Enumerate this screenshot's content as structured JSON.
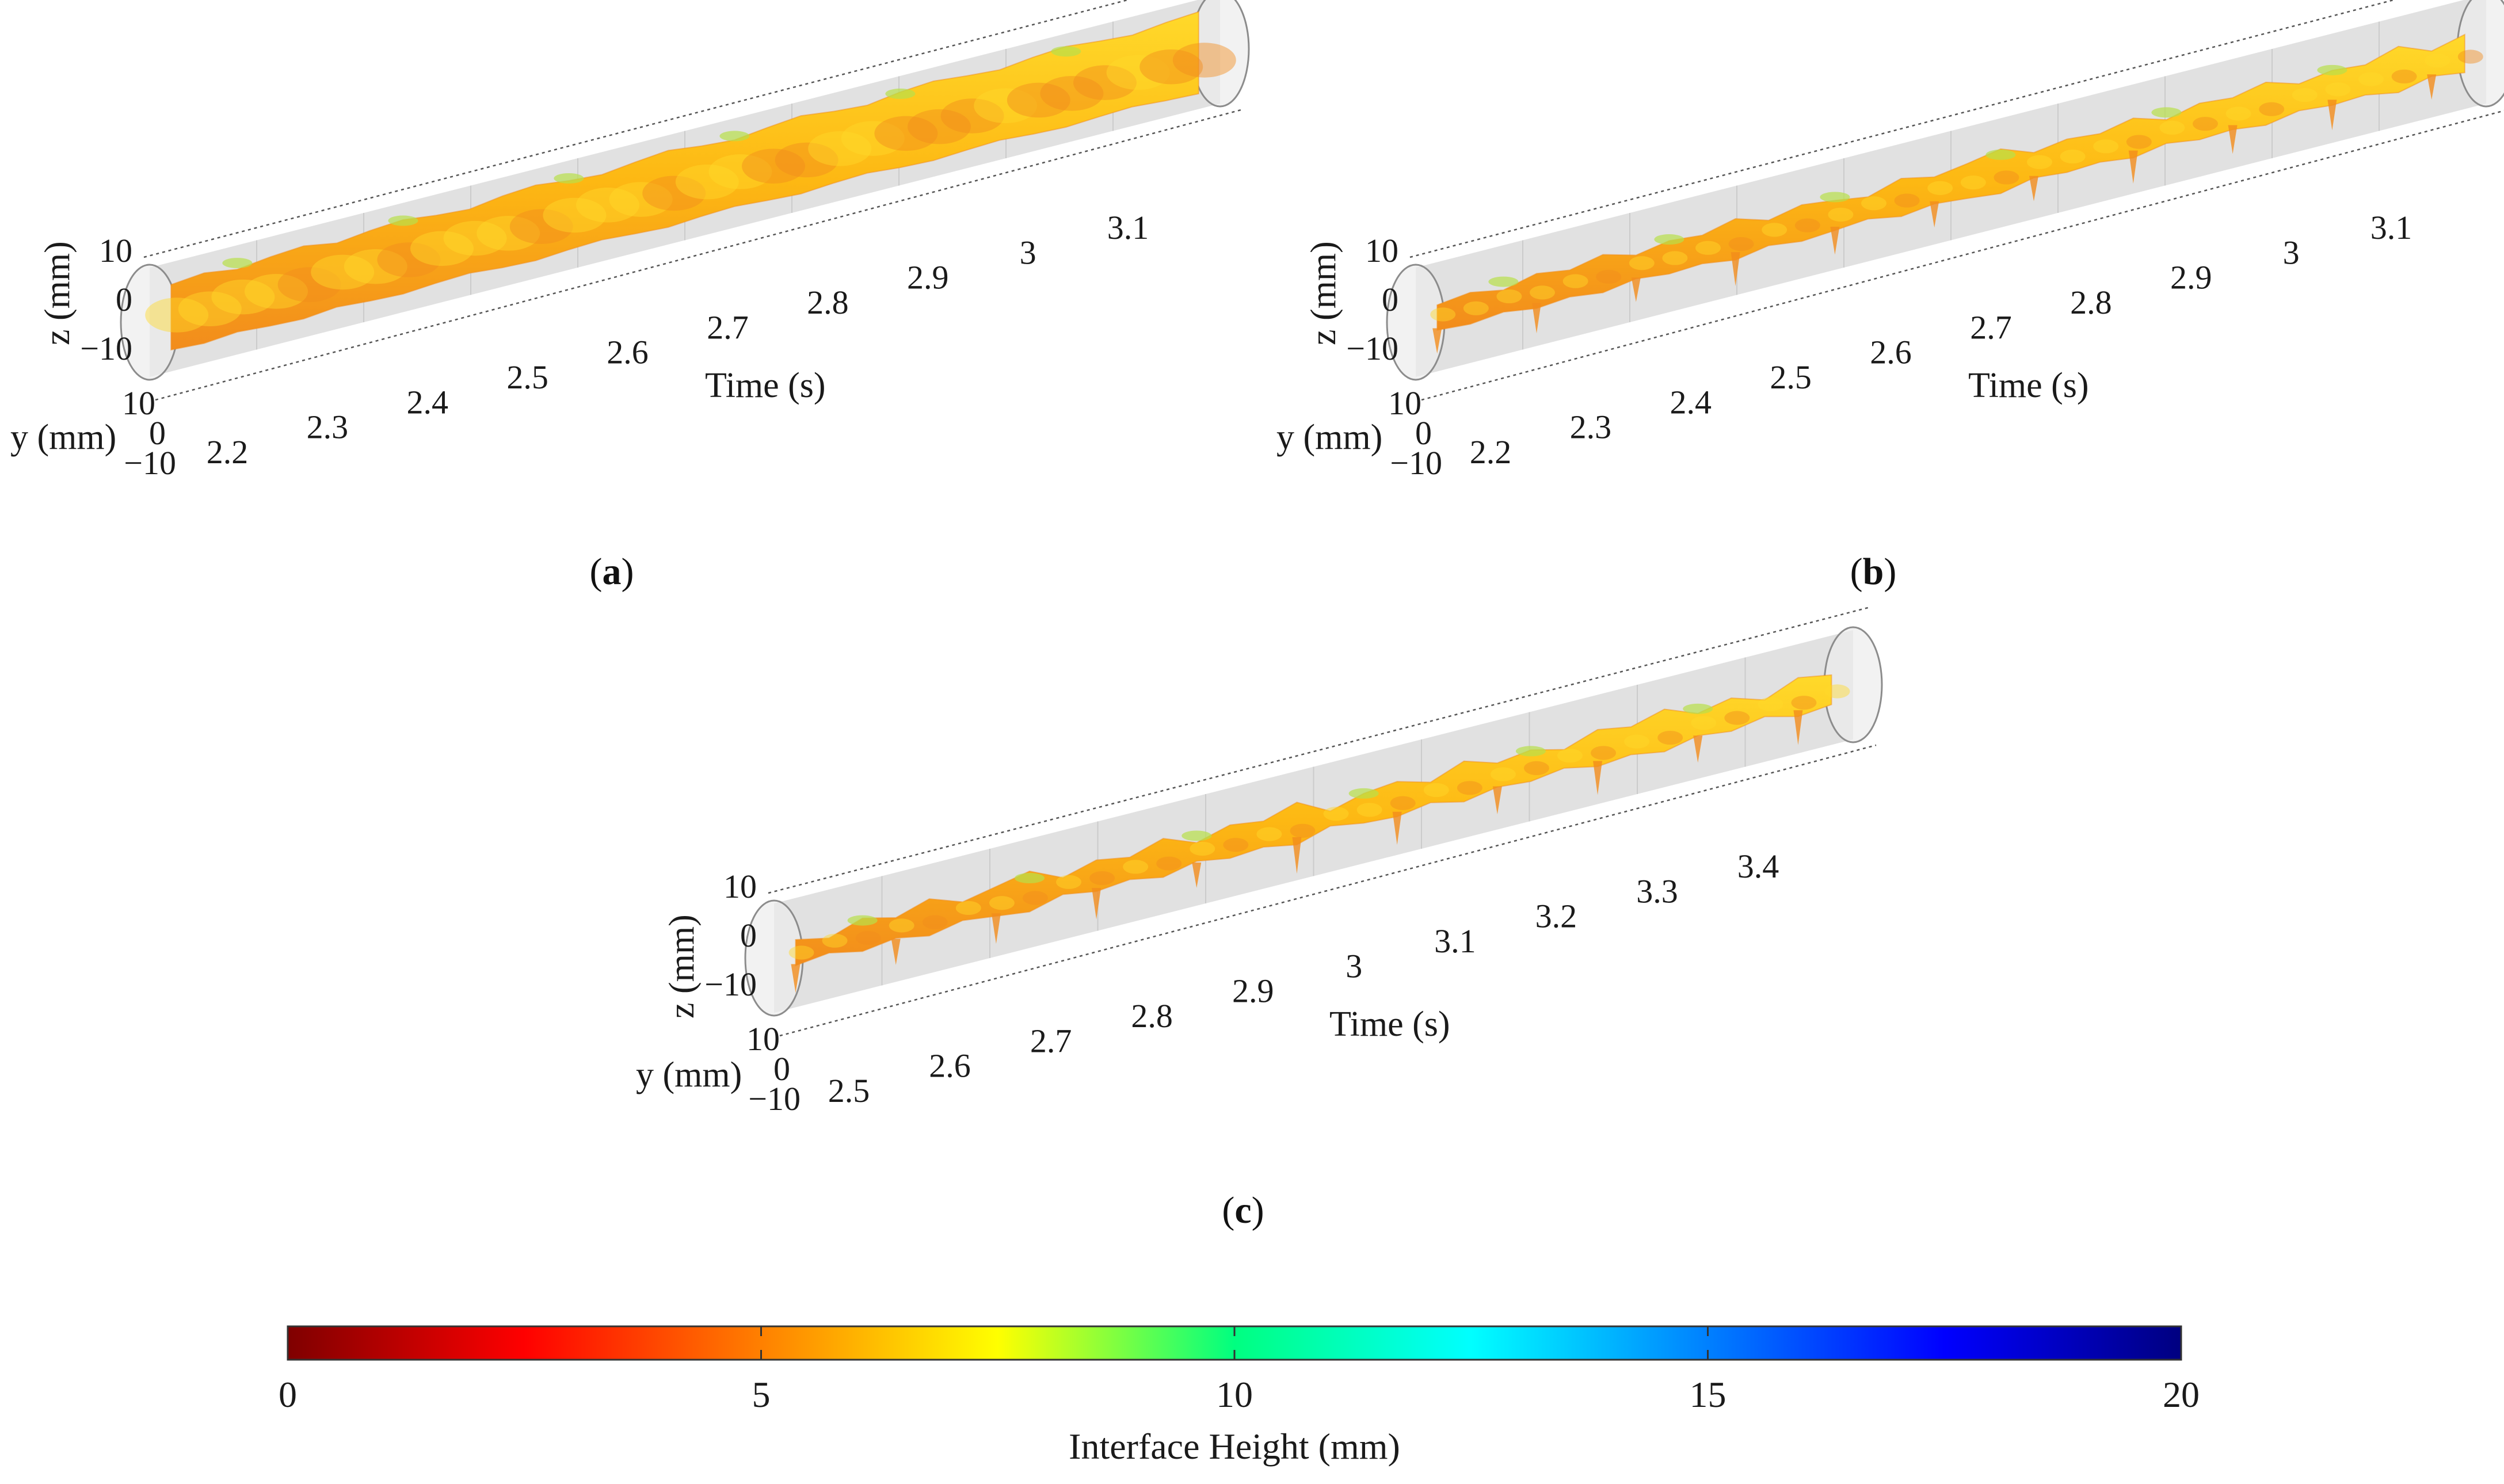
{
  "chart_data": [
    {
      "type": "3d-surface",
      "panel_label": "a",
      "xlabel": "Time (s)",
      "ylabel": "y (mm)",
      "zlabel": "z (mm)",
      "x_ticks": [
        "2.2",
        "2.3",
        "2.4",
        "2.5",
        "2.6",
        "2.7",
        "2.8",
        "2.9",
        "3",
        "3.1"
      ],
      "y_ticks": [
        "10",
        "0",
        "−10"
      ],
      "z_ticks": [
        "10",
        "0",
        "−10"
      ],
      "xlim": [
        2.2,
        3.15
      ],
      "surface_style": "smooth",
      "profile": [
        0.35,
        0.55,
        0.25,
        0.5,
        0.65,
        0.3,
        0.55,
        0.7,
        0.45,
        0.3,
        0.6,
        0.75,
        0.5,
        0.35,
        0.6,
        0.8,
        0.55,
        0.4,
        0.65,
        0.85,
        0.6,
        0.45,
        0.75,
        0.9,
        0.7,
        0.55,
        0.8,
        0.95,
        0.75,
        0.6,
        0.85,
        1.0
      ]
    },
    {
      "type": "3d-surface",
      "panel_label": "b",
      "xlabel": "Time (s)",
      "ylabel": "y (mm)",
      "zlabel": "z (mm)",
      "x_ticks": [
        "2.2",
        "2.3",
        "2.4",
        "2.5",
        "2.6",
        "2.7",
        "2.8",
        "2.9",
        "3",
        "3.1"
      ],
      "y_ticks": [
        "10",
        "0",
        "−10"
      ],
      "z_ticks": [
        "10",
        "0",
        "−10"
      ],
      "xlim": [
        2.2,
        3.15
      ],
      "surface_style": "thin-wavy",
      "profile": [
        0.3,
        0.5,
        0.2,
        0.6,
        0.35,
        0.7,
        0.25,
        0.55,
        0.4,
        0.8,
        0.3,
        0.65,
        0.45,
        0.2,
        0.7,
        0.35,
        0.6,
        0.9,
        0.3,
        0.55,
        0.4,
        0.75,
        0.25,
        0.65,
        0.5,
        0.85,
        0.35,
        0.6,
        0.45,
        0.95,
        0.3,
        0.7
      ]
    },
    {
      "type": "3d-surface",
      "panel_label": "c",
      "xlabel": "Time (s)",
      "ylabel": "y (mm)",
      "zlabel": "z (mm)",
      "x_ticks": [
        "2.5",
        "2.6",
        "2.7",
        "2.8",
        "2.9",
        "3",
        "3.1",
        "3.2",
        "3.3",
        "3.4"
      ],
      "y_ticks": [
        "10",
        "0",
        "−10"
      ],
      "z_ticks": [
        "10",
        "0",
        "−10"
      ],
      "xlim": [
        2.5,
        3.45
      ],
      "surface_style": "fragmented",
      "profile": [
        0.5,
        0.2,
        0.7,
        0.35,
        0.8,
        0.3,
        0.6,
        0.9,
        0.25,
        0.65,
        0.4,
        0.85,
        0.3,
        0.7,
        0.5,
        0.95,
        0.2,
        0.6,
        0.75,
        0.35,
        0.9,
        0.45,
        0.65,
        0.3,
        0.8,
        0.55,
        0.95,
        0.4,
        0.7,
        0.25,
        0.85,
        0.6
      ]
    }
  ],
  "colorbar": {
    "label": "Interface Height (mm)",
    "ticks": [
      "0",
      "5",
      "10",
      "15",
      "20"
    ],
    "range": [
      0,
      20
    ],
    "colormap": [
      "#7f0000",
      "#ff0000",
      "#ff8000",
      "#ffff00",
      "#00ff80",
      "#00ffff",
      "#0080ff",
      "#0000ff",
      "#000080"
    ]
  },
  "colors": {
    "tube_fill": "#d9d9d9",
    "tube_edge": "#8c8c8c",
    "surface_main": "#fdb813",
    "surface_dark": "#f28c1c",
    "surface_light": "#ffd92a",
    "surface_green": "#b8e04a"
  }
}
